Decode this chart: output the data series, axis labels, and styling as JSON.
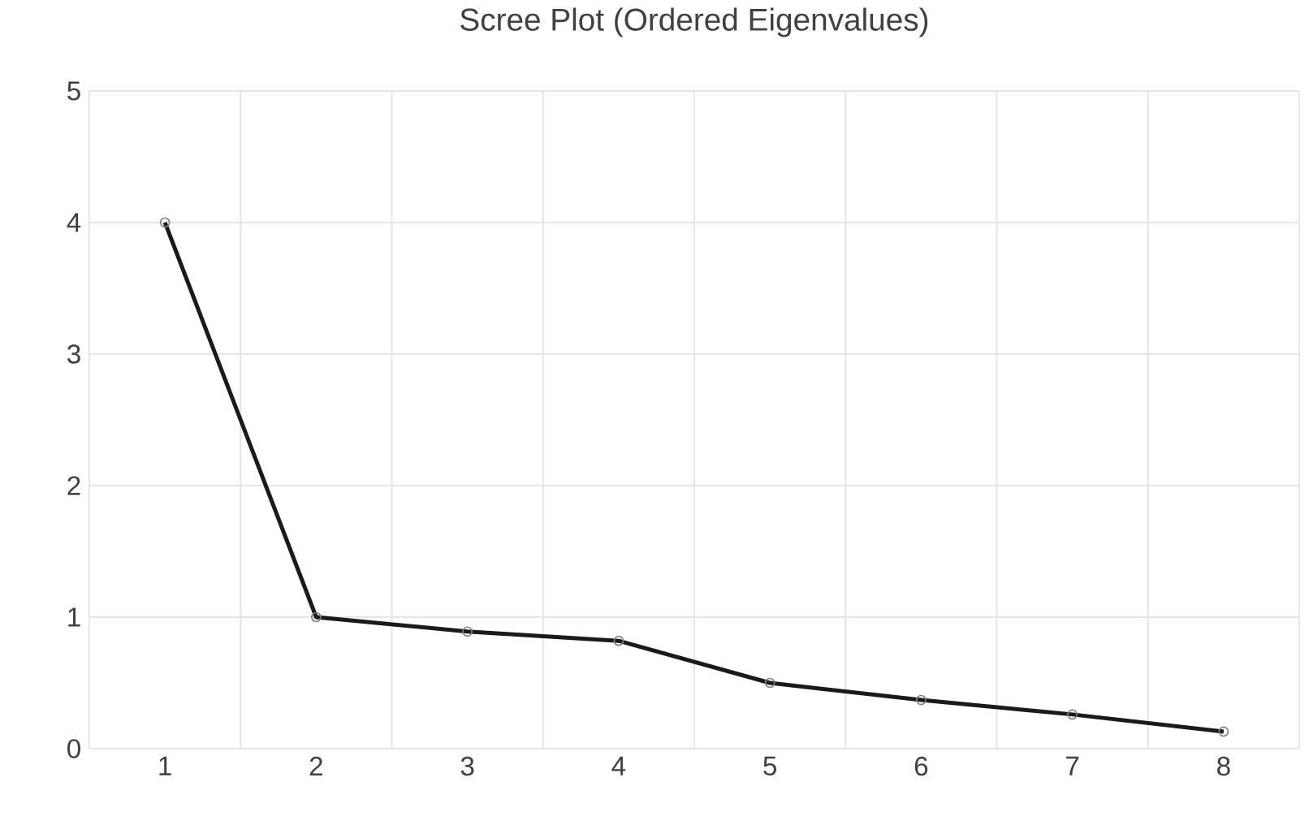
{
  "chart_data": {
    "type": "line",
    "title": "Scree Plot (Ordered Eigenvalues)",
    "categories": [
      "1",
      "2",
      "3",
      "4",
      "5",
      "6",
      "7",
      "8"
    ],
    "series": [
      {
        "color": "#1a1a1a",
        "values": [
          4.0,
          1.0,
          0.89,
          0.82,
          0.5,
          0.37,
          0.26,
          0.13
        ]
      }
    ],
    "ylim": [
      0,
      5
    ],
    "yticks": [
      0,
      1,
      2,
      3,
      4,
      5
    ],
    "grid": true,
    "marker": "circle",
    "line_style": "solid"
  }
}
